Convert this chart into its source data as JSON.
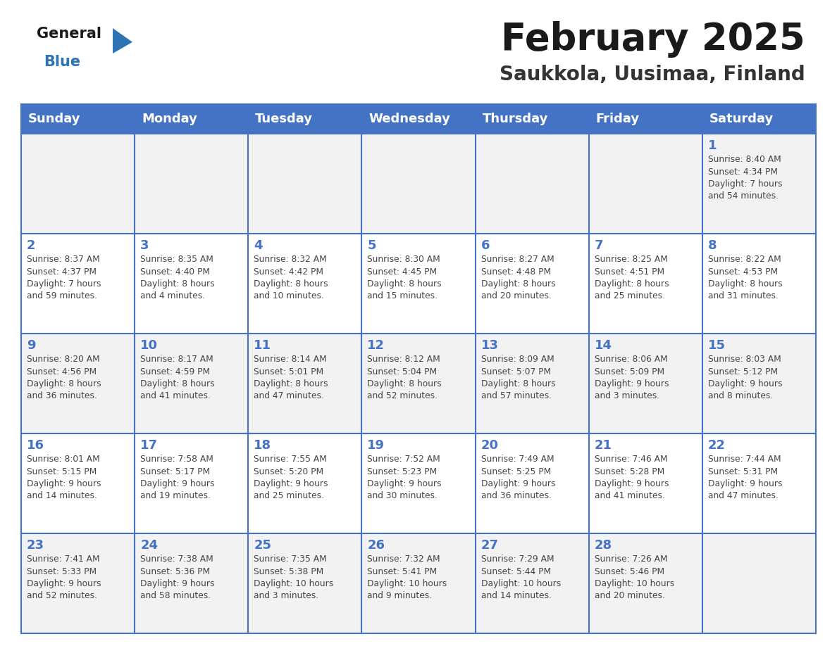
{
  "title": "February 2025",
  "subtitle": "Saukkola, Uusimaa, Finland",
  "days_of_week": [
    "Sunday",
    "Monday",
    "Tuesday",
    "Wednesday",
    "Thursday",
    "Friday",
    "Saturday"
  ],
  "header_bg": "#4472C4",
  "header_text_color": "#FFFFFF",
  "odd_row_bg": "#F2F2F2",
  "even_row_bg": "#FFFFFF",
  "border_color": "#4472C4",
  "day_number_color": "#4472C4",
  "cell_text_color": "#444444",
  "title_color": "#1a1a1a",
  "subtitle_color": "#333333",
  "general_color": "#1a1a1a",
  "blue_color": "#2E74B5",
  "weeks": [
    [
      null,
      null,
      null,
      null,
      null,
      null,
      {
        "day": 1,
        "sunrise": "8:40 AM",
        "sunset": "4:34 PM",
        "daylight": "7 hours\nand 54 minutes."
      }
    ],
    [
      {
        "day": 2,
        "sunrise": "8:37 AM",
        "sunset": "4:37 PM",
        "daylight": "7 hours\nand 59 minutes."
      },
      {
        "day": 3,
        "sunrise": "8:35 AM",
        "sunset": "4:40 PM",
        "daylight": "8 hours\nand 4 minutes."
      },
      {
        "day": 4,
        "sunrise": "8:32 AM",
        "sunset": "4:42 PM",
        "daylight": "8 hours\nand 10 minutes."
      },
      {
        "day": 5,
        "sunrise": "8:30 AM",
        "sunset": "4:45 PM",
        "daylight": "8 hours\nand 15 minutes."
      },
      {
        "day": 6,
        "sunrise": "8:27 AM",
        "sunset": "4:48 PM",
        "daylight": "8 hours\nand 20 minutes."
      },
      {
        "day": 7,
        "sunrise": "8:25 AM",
        "sunset": "4:51 PM",
        "daylight": "8 hours\nand 25 minutes."
      },
      {
        "day": 8,
        "sunrise": "8:22 AM",
        "sunset": "4:53 PM",
        "daylight": "8 hours\nand 31 minutes."
      }
    ],
    [
      {
        "day": 9,
        "sunrise": "8:20 AM",
        "sunset": "4:56 PM",
        "daylight": "8 hours\nand 36 minutes."
      },
      {
        "day": 10,
        "sunrise": "8:17 AM",
        "sunset": "4:59 PM",
        "daylight": "8 hours\nand 41 minutes."
      },
      {
        "day": 11,
        "sunrise": "8:14 AM",
        "sunset": "5:01 PM",
        "daylight": "8 hours\nand 47 minutes."
      },
      {
        "day": 12,
        "sunrise": "8:12 AM",
        "sunset": "5:04 PM",
        "daylight": "8 hours\nand 52 minutes."
      },
      {
        "day": 13,
        "sunrise": "8:09 AM",
        "sunset": "5:07 PM",
        "daylight": "8 hours\nand 57 minutes."
      },
      {
        "day": 14,
        "sunrise": "8:06 AM",
        "sunset": "5:09 PM",
        "daylight": "9 hours\nand 3 minutes."
      },
      {
        "day": 15,
        "sunrise": "8:03 AM",
        "sunset": "5:12 PM",
        "daylight": "9 hours\nand 8 minutes."
      }
    ],
    [
      {
        "day": 16,
        "sunrise": "8:01 AM",
        "sunset": "5:15 PM",
        "daylight": "9 hours\nand 14 minutes."
      },
      {
        "day": 17,
        "sunrise": "7:58 AM",
        "sunset": "5:17 PM",
        "daylight": "9 hours\nand 19 minutes."
      },
      {
        "day": 18,
        "sunrise": "7:55 AM",
        "sunset": "5:20 PM",
        "daylight": "9 hours\nand 25 minutes."
      },
      {
        "day": 19,
        "sunrise": "7:52 AM",
        "sunset": "5:23 PM",
        "daylight": "9 hours\nand 30 minutes."
      },
      {
        "day": 20,
        "sunrise": "7:49 AM",
        "sunset": "5:25 PM",
        "daylight": "9 hours\nand 36 minutes."
      },
      {
        "day": 21,
        "sunrise": "7:46 AM",
        "sunset": "5:28 PM",
        "daylight": "9 hours\nand 41 minutes."
      },
      {
        "day": 22,
        "sunrise": "7:44 AM",
        "sunset": "5:31 PM",
        "daylight": "9 hours\nand 47 minutes."
      }
    ],
    [
      {
        "day": 23,
        "sunrise": "7:41 AM",
        "sunset": "5:33 PM",
        "daylight": "9 hours\nand 52 minutes."
      },
      {
        "day": 24,
        "sunrise": "7:38 AM",
        "sunset": "5:36 PM",
        "daylight": "9 hours\nand 58 minutes."
      },
      {
        "day": 25,
        "sunrise": "7:35 AM",
        "sunset": "5:38 PM",
        "daylight": "10 hours\nand 3 minutes."
      },
      {
        "day": 26,
        "sunrise": "7:32 AM",
        "sunset": "5:41 PM",
        "daylight": "10 hours\nand 9 minutes."
      },
      {
        "day": 27,
        "sunrise": "7:29 AM",
        "sunset": "5:44 PM",
        "daylight": "10 hours\nand 14 minutes."
      },
      {
        "day": 28,
        "sunrise": "7:26 AM",
        "sunset": "5:46 PM",
        "daylight": "10 hours\nand 20 minutes."
      },
      null
    ]
  ]
}
